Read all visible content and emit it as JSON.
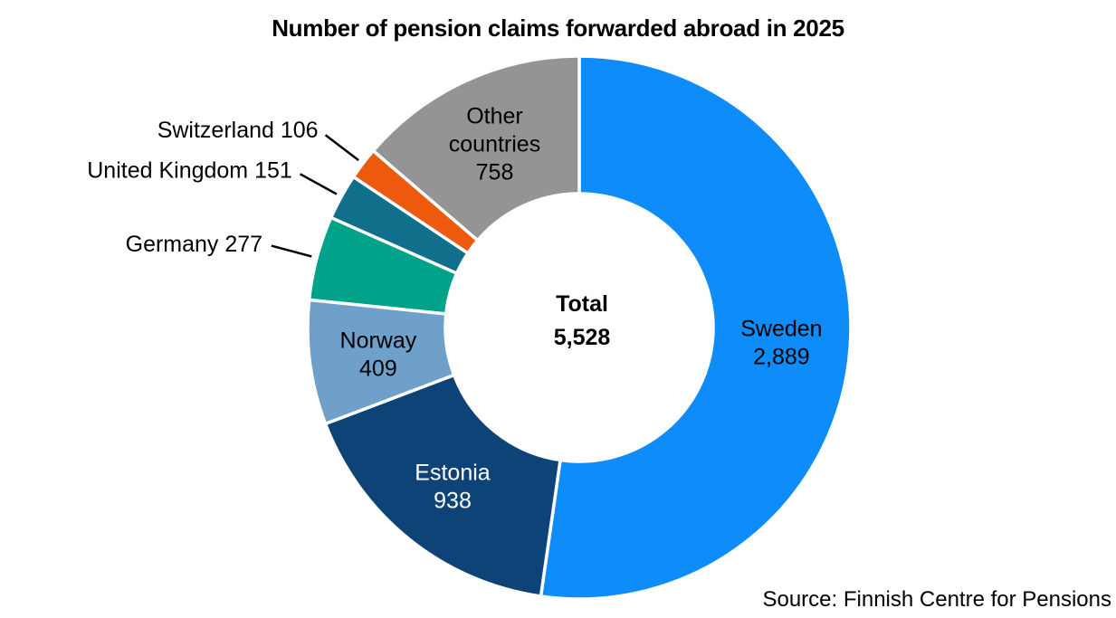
{
  "chart_data": {
    "type": "pie",
    "subtype": "donut",
    "title": "Number of pension claims forwarded abroad in 2025",
    "source": "Source: Finnish Centre for Pensions",
    "center": {
      "label": "Total",
      "value": "5,528"
    },
    "total": 5528,
    "start_angle_deg": 0,
    "direction": "clockwise",
    "legend": "none",
    "slices": [
      {
        "name": "Sweden",
        "value": 2889,
        "display_value": "2,889",
        "color": "#0E8CFA",
        "label_placement": "inside",
        "label_color": "#000000",
        "label_lines": [
          "Sweden",
          "2,889"
        ]
      },
      {
        "name": "Estonia",
        "value": 938,
        "display_value": "938",
        "color": "#0E4377",
        "label_placement": "inside",
        "label_color": "#FFFFFF",
        "label_lines": [
          "Estonia",
          "938"
        ]
      },
      {
        "name": "Norway",
        "value": 409,
        "display_value": "409",
        "color": "#6FA0CA",
        "label_placement": "inside",
        "label_color": "#000000",
        "label_lines": [
          "Norway",
          "409"
        ]
      },
      {
        "name": "Germany",
        "value": 277,
        "display_value": "277",
        "color": "#00A38A",
        "label_placement": "outside",
        "label_color": "#000000",
        "label_text": "Germany 277"
      },
      {
        "name": "United Kingdom",
        "value": 151,
        "display_value": "151",
        "color": "#10708C",
        "label_placement": "outside",
        "label_color": "#000000",
        "label_text": "United Kingdom 151"
      },
      {
        "name": "Switzerland",
        "value": 106,
        "display_value": "106",
        "color": "#ED5A0D",
        "label_placement": "outside",
        "label_color": "#000000",
        "label_text": "Switzerland 106"
      },
      {
        "name": "Other countries",
        "value": 758,
        "display_value": "758",
        "color": "#949494",
        "label_placement": "inside",
        "label_color": "#000000",
        "label_lines": [
          "Other",
          "countries",
          "758"
        ]
      }
    ]
  }
}
